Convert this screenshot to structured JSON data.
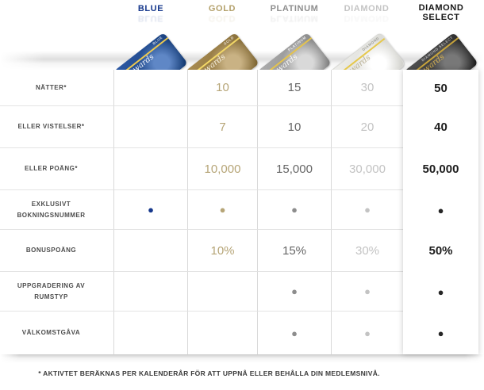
{
  "tiers": [
    {
      "label": "BLUE",
      "color": "#16388c"
    },
    {
      "label": "GOLD",
      "color": "#b3a06a"
    },
    {
      "label": "PLATINUM",
      "color": "#8d8d8d"
    },
    {
      "label": "DIAMOND",
      "color": "#c4c4c4"
    },
    {
      "label": "DIAMOND SELECT",
      "color": "#1d1d1d"
    }
  ],
  "card_brand_text": "Rewards",
  "chart_data": {
    "type": "table",
    "columns": [
      "BLUE",
      "GOLD",
      "PLATINUM",
      "DIAMOND",
      "DIAMOND SELECT"
    ],
    "rows": [
      {
        "label": "NÄTTER*",
        "values": [
          "",
          "10",
          "15",
          "30",
          "50"
        ]
      },
      {
        "label": "ELLER VISTELSER*",
        "values": [
          "",
          "7",
          "10",
          "20",
          "40"
        ]
      },
      {
        "label": "ELLER POÄNG*",
        "values": [
          "",
          "10,000",
          "15,000",
          "30,000",
          "50,000"
        ]
      },
      {
        "label": "EXKLUSIVT BOKNINGSNUMMER",
        "values": [
          "●",
          "●",
          "●",
          "●",
          "●"
        ]
      },
      {
        "label": "BONUSPOÄNG",
        "values": [
          "",
          "10%",
          "15%",
          "30%",
          "50%"
        ]
      },
      {
        "label": "UPPGRADERING AV RUMSTYP",
        "values": [
          "",
          "",
          "●",
          "●",
          "●"
        ]
      },
      {
        "label": "VÄLKOMSTGÅVA",
        "values": [
          "",
          "",
          "●",
          "●",
          "●"
        ]
      }
    ],
    "footnote": "* AKTIVTET BERÄKNAS PER KALENDERÅR FÖR ATT UPPNÅ ELLER BEHÅLLA DIN MEDLEMSNIVÅ.",
    "highlighted_column": "DIAMOND SELECT"
  }
}
